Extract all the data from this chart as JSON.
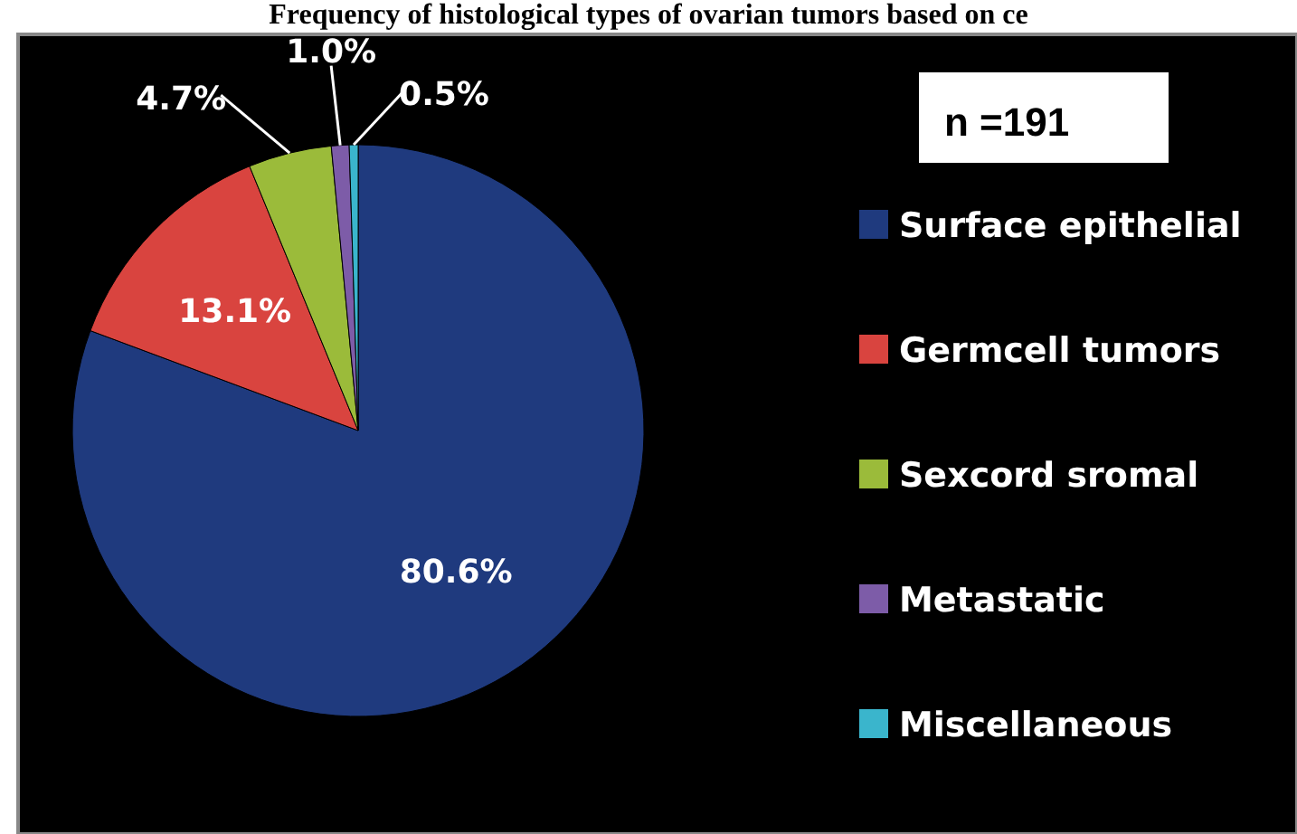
{
  "chart_data": {
    "type": "pie",
    "title": "Frequency of histological types of ovarian tumors based on ce",
    "categories": [
      "Surface epithelial",
      "Germcell tumors",
      "Sexcord sromal",
      "Metastatic",
      "Miscellaneous"
    ],
    "values": [
      80.6,
      13.1,
      4.7,
      1.0,
      0.5
    ],
    "colors": [
      "#1f3a7e",
      "#d9443f",
      "#9bbb3a",
      "#7d5ca8",
      "#3ab5cc"
    ],
    "value_labels": [
      "80.6%",
      "13.1%",
      "4.7%",
      "1.0%",
      "0.5%"
    ],
    "annotations": [
      "n =191"
    ],
    "legend": "right"
  }
}
